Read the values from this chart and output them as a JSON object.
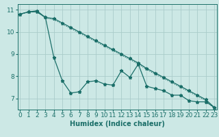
{
  "xlabel": "Humidex (Indice chaleur)",
  "background_color": "#cce8e5",
  "grid_color": "#aaccca",
  "line_color": "#1a6e68",
  "x": [
    0,
    1,
    2,
    3,
    4,
    5,
    6,
    7,
    8,
    9,
    10,
    11,
    12,
    13,
    14,
    15,
    16,
    17,
    18,
    19,
    20,
    21,
    22,
    23
  ],
  "line1": [
    10.8,
    10.9,
    10.9,
    10.65,
    8.85,
    7.8,
    7.25,
    7.3,
    7.75,
    7.8,
    7.65,
    7.6,
    8.25,
    7.95,
    8.55,
    7.55,
    7.45,
    7.35,
    7.15,
    7.15,
    6.9,
    6.85,
    6.85,
    6.6
  ],
  "line2": [
    10.8,
    10.9,
    10.95,
    10.65,
    10.6,
    10.4,
    10.2,
    10.0,
    9.8,
    9.6,
    9.4,
    9.2,
    9.0,
    8.8,
    8.6,
    8.35,
    8.15,
    7.95,
    7.75,
    7.55,
    7.35,
    7.15,
    6.95,
    6.6
  ],
  "line3": [
    10.8,
    10.88,
    10.92,
    10.62,
    10.55,
    10.35,
    10.15,
    9.95,
    9.75,
    9.55,
    9.35,
    9.15,
    8.95,
    8.75,
    8.55,
    8.3,
    8.1,
    7.9,
    7.7,
    7.5,
    7.3,
    7.1,
    6.9,
    6.55
  ],
  "ylim": [
    6.5,
    11.25
  ],
  "xlim": [
    -0.3,
    23.3
  ],
  "yticks": [
    7,
    8,
    9,
    10,
    11
  ],
  "xticks": [
    0,
    1,
    2,
    3,
    4,
    5,
    6,
    7,
    8,
    9,
    10,
    11,
    12,
    13,
    14,
    15,
    16,
    17,
    18,
    19,
    20,
    21,
    22,
    23
  ],
  "markersize": 3.5,
  "linewidth": 0.9,
  "font_size": 6.5
}
